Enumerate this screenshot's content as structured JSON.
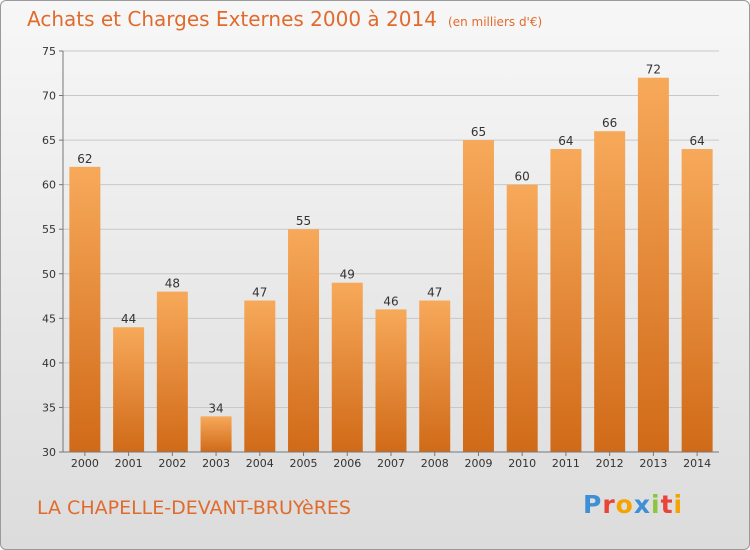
{
  "header": {
    "title": "Achats et Charges Externes 2000 à 2014",
    "unit": "(en milliers d'€)"
  },
  "footer": {
    "place": "LA CHAPELLE-DEVANT-BRUYèRES",
    "logo": "Proxiti",
    "logo_colors": [
      "#3d8fd6",
      "#e8443a",
      "#f4a300",
      "#3d8fd6",
      "#8cc63f",
      "#e8443a",
      "#f4a300"
    ]
  },
  "colors": {
    "bar_light": "#f7a95a",
    "bar_dark": "#d06a18",
    "title": "#e06b2d",
    "grid": "#c8c8c8"
  },
  "chart_data": {
    "type": "bar",
    "title": "Achats et Charges Externes 2000 à 2014",
    "subtitle": "(en milliers d'€)",
    "xlabel": "",
    "ylabel": "",
    "categories": [
      "2000",
      "2001",
      "2002",
      "2003",
      "2004",
      "2005",
      "2006",
      "2007",
      "2008",
      "2009",
      "2010",
      "2011",
      "2012",
      "2013",
      "2014"
    ],
    "values": [
      62,
      44,
      48,
      34,
      47,
      55,
      49,
      46,
      47,
      65,
      60,
      64,
      66,
      72,
      64
    ],
    "ylim": [
      30,
      75
    ],
    "yticks": [
      30,
      35,
      40,
      45,
      50,
      55,
      60,
      65,
      70,
      75
    ],
    "grid": true,
    "data_labels": true
  }
}
